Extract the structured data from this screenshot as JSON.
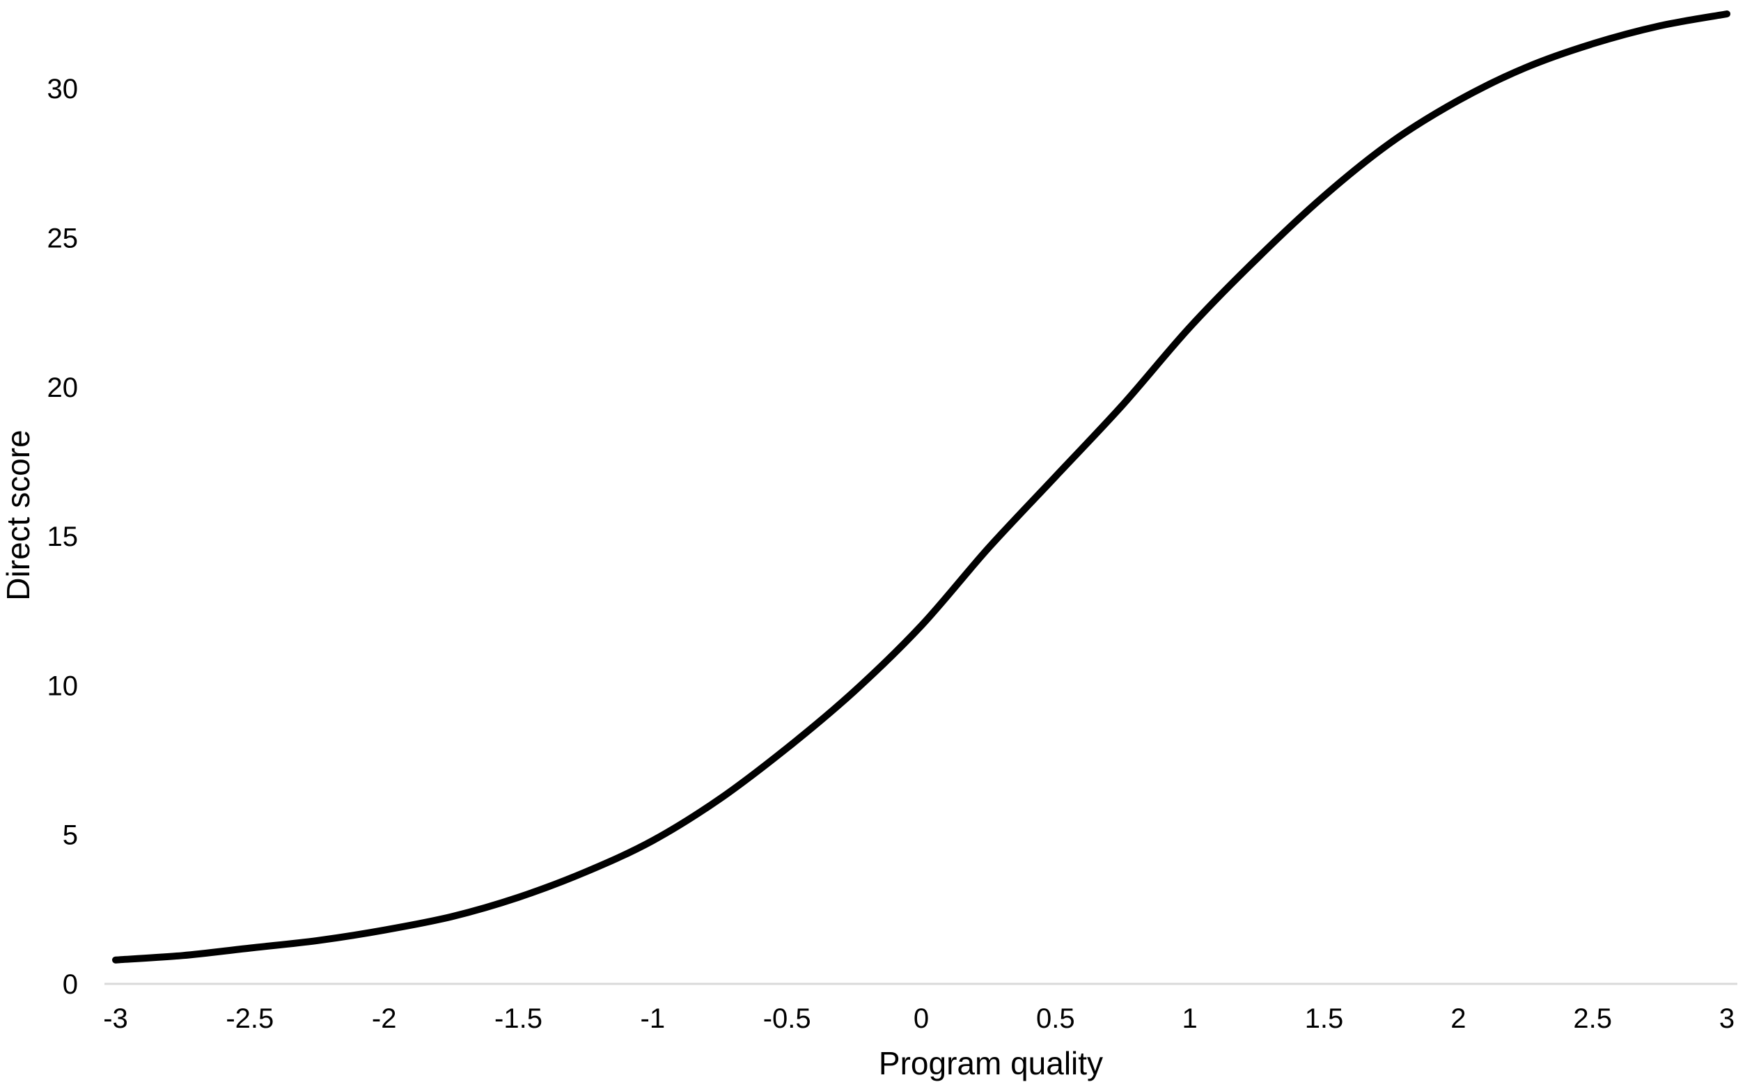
{
  "chart_data": {
    "type": "line",
    "title": "",
    "xlabel": "Program quality",
    "ylabel": "Direct score",
    "xlim": [
      -3,
      3
    ],
    "ylim": [
      0,
      32.5
    ],
    "x_ticks": [
      -3,
      -2.5,
      -2,
      -1.5,
      -1,
      -0.5,
      0,
      0.5,
      1,
      1.5,
      2,
      2.5,
      3
    ],
    "x_tick_labels": [
      "-3",
      "-2.5",
      "-2",
      "-1.5",
      "-1",
      "-0.5",
      "0",
      "0.5",
      "1",
      "1.5",
      "2",
      "2.5",
      "3"
    ],
    "y_ticks": [
      0,
      5,
      10,
      15,
      20,
      25,
      30
    ],
    "y_tick_labels": [
      "0",
      "5",
      "10",
      "15",
      "20",
      "25",
      "30"
    ],
    "grid": false,
    "legend": "none",
    "series": [
      {
        "color": "#000000",
        "x": [
          -3,
          -2.75,
          -2.5,
          -2.25,
          -2,
          -1.75,
          -1.5,
          -1.25,
          -1,
          -0.75,
          -0.5,
          -0.25,
          0,
          0.25,
          0.5,
          0.75,
          1,
          1.25,
          1.5,
          1.75,
          2,
          2.25,
          2.5,
          2.75,
          3
        ],
        "y": [
          0.8,
          0.95,
          1.2,
          1.45,
          1.8,
          2.25,
          2.9,
          3.75,
          4.8,
          6.2,
          7.9,
          9.8,
          12.0,
          14.6,
          17.0,
          19.4,
          22.0,
          24.3,
          26.4,
          28.2,
          29.6,
          30.7,
          31.5,
          32.1,
          32.5
        ]
      }
    ]
  }
}
